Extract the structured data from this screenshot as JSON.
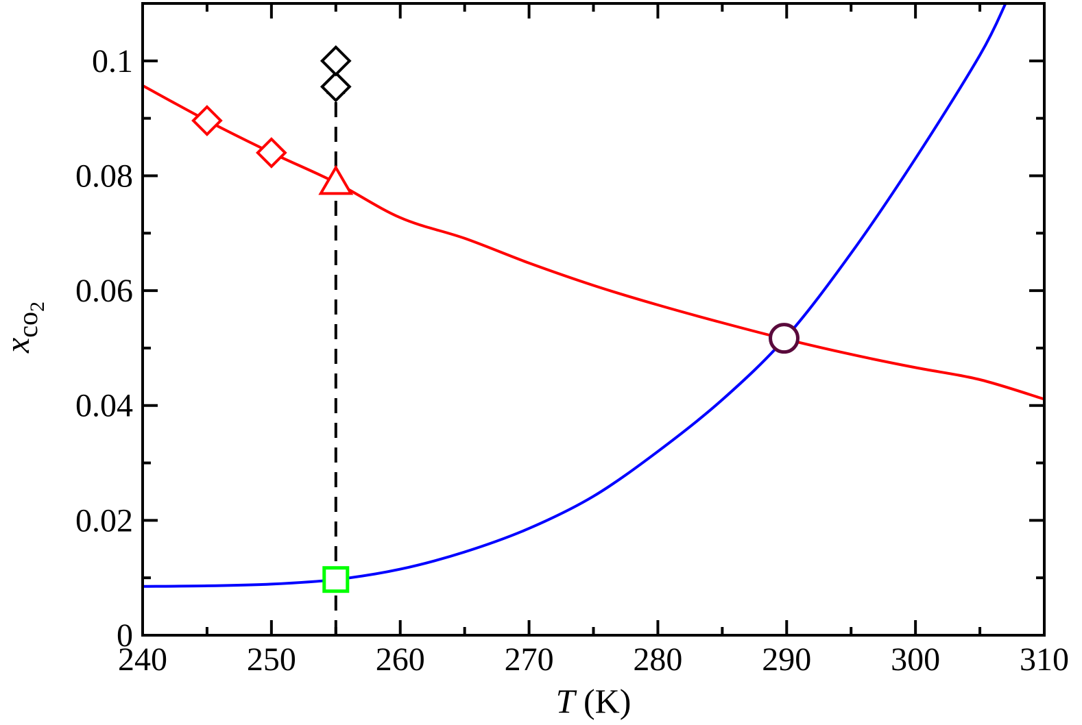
{
  "chart_data": {
    "type": "line",
    "xlabel": {
      "var": "T",
      "unit": " (K)"
    },
    "ylabel": {
      "var": "x",
      "sub": "co",
      "subsub": "2"
    },
    "xlim": [
      240,
      310
    ],
    "ylim": [
      0,
      0.11
    ],
    "x_ticks": [
      240,
      250,
      260,
      270,
      280,
      290,
      300,
      310
    ],
    "x_tick_labels": [
      "240",
      "250",
      "260",
      "270",
      "280",
      "290",
      "300",
      "310"
    ],
    "y_ticks": [
      0,
      0.02,
      0.04,
      0.06,
      0.08,
      0.1
    ],
    "y_tick_labels": [
      "0",
      "0.02",
      "0.04",
      "0.06",
      "0.08",
      "0.1"
    ],
    "grid": false,
    "colors": {
      "red_curve": "#ff0000",
      "blue_curve": "#0000ff",
      "dashed_line": "#000000",
      "black_markers": "#000000",
      "square_marker": "#00ff00",
      "circle_marker": "#5a0a3c"
    },
    "series": [
      {
        "style": "line",
        "color": "#ff0000",
        "x": [
          240,
          245,
          250,
          255,
          260,
          265,
          270,
          275,
          280,
          285,
          290,
          295,
          300,
          305,
          310
        ],
        "y": [
          0.0957,
          0.0896,
          0.084,
          0.0788,
          0.0727,
          0.0691,
          0.0648,
          0.0609,
          0.0575,
          0.0544,
          0.0515,
          0.0489,
          0.0466,
          0.0445,
          0.0411
        ]
      },
      {
        "style": "line",
        "color": "#0000ff",
        "x": [
          240,
          245,
          250,
          255,
          260,
          265,
          270,
          275,
          280,
          285,
          290,
          295,
          300,
          305,
          307
        ],
        "y": [
          0.0085,
          0.0086,
          0.0089,
          0.0097,
          0.0115,
          0.0145,
          0.0186,
          0.0242,
          0.032,
          0.041,
          0.052,
          0.0665,
          0.083,
          0.101,
          0.11
        ]
      },
      {
        "style": "dashed",
        "color": "#000000",
        "x": [
          255,
          255
        ],
        "y": [
          0,
          0.095
        ]
      }
    ],
    "markers": [
      {
        "shape": "diamond",
        "color": "#ff0000",
        "x": 245,
        "y": 0.0896
      },
      {
        "shape": "diamond",
        "color": "#ff0000",
        "x": 250,
        "y": 0.084
      },
      {
        "shape": "triangle",
        "color": "#ff0000",
        "x": 255,
        "y": 0.0788
      },
      {
        "shape": "triangle-filled",
        "color": "#000000",
        "x": 255,
        "y": 0.0955
      },
      {
        "shape": "diamond",
        "color": "#000000",
        "x": 255,
        "y": 0.0955
      },
      {
        "shape": "diamond",
        "color": "#000000",
        "x": 255,
        "y": 0.1
      },
      {
        "shape": "square",
        "color": "#00ff00",
        "x": 255,
        "y": 0.0097
      },
      {
        "shape": "circle",
        "color": "#5a0a3c",
        "x": 289.8,
        "y": 0.0517
      }
    ]
  }
}
